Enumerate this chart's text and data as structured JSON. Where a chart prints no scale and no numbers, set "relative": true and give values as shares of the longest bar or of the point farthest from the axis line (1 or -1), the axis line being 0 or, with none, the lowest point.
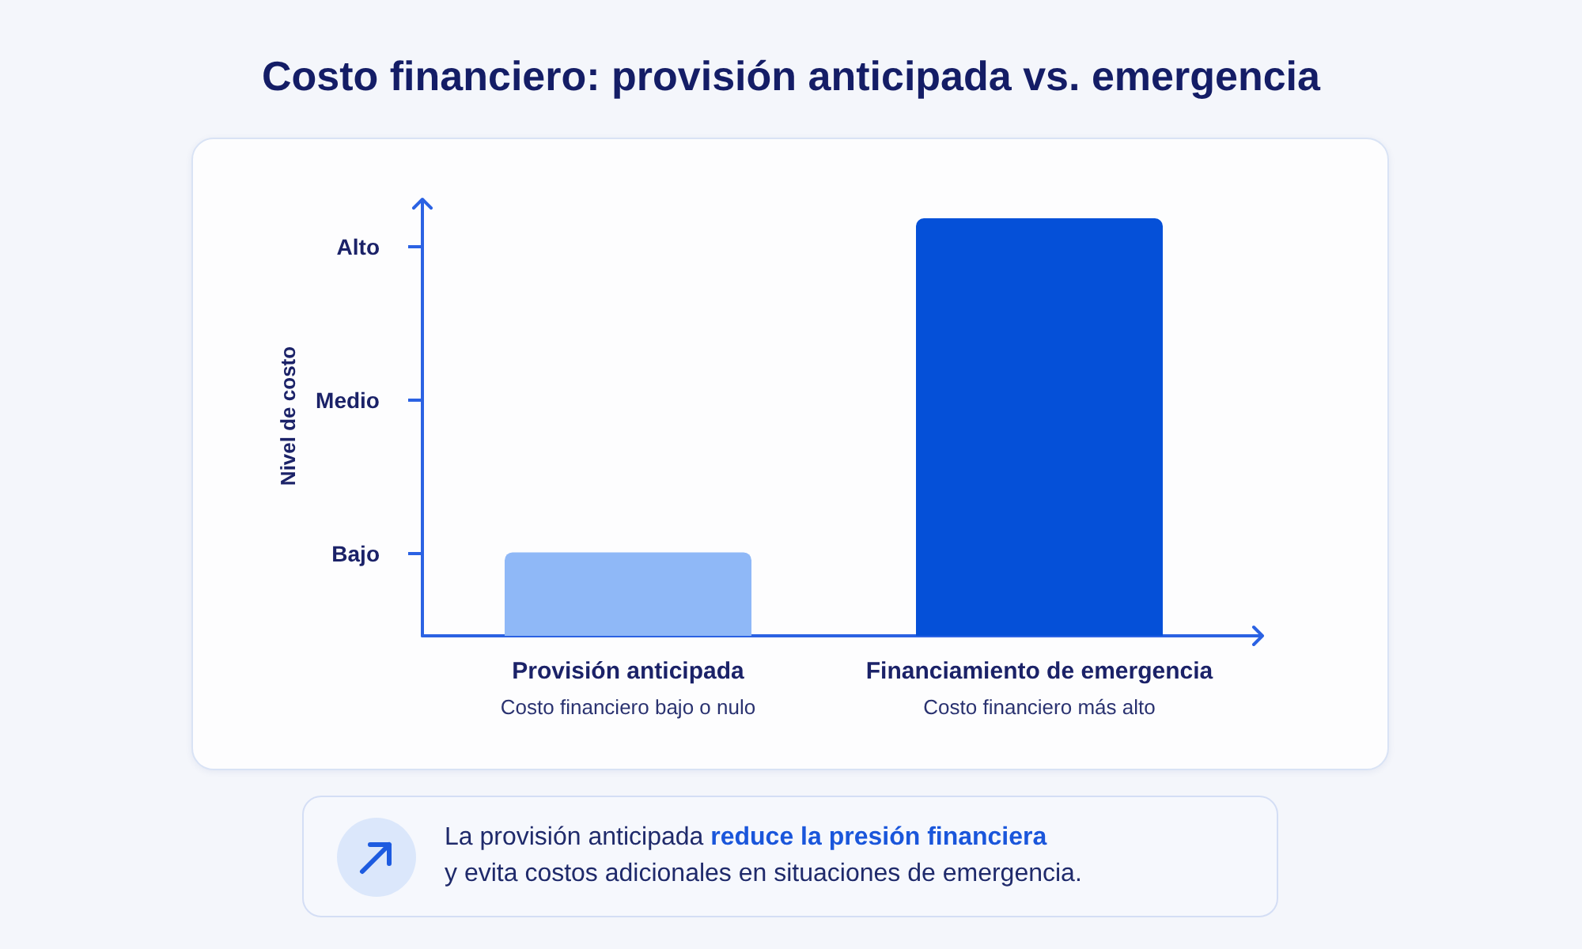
{
  "chart_data": {
    "type": "bar",
    "title": "Costo financiero: provisión anticipada vs. emergencia",
    "categories": [
      "Provisión anticipada",
      "Financiamiento de emergencia"
    ],
    "values": [
      0.2,
      1
    ],
    "colors": [
      "#8fb8f7",
      "#0550d8"
    ],
    "relative": true,
    "annotations": [
      "Nivel de costo",
      "Bajo",
      "Medio",
      "Alto",
      "Costo financiero bajo o nulo",
      "Costo financiero más alto",
      "La provisión anticipada",
      "reduce la presión financiera",
      "y evita costos adicionales en situaciones de emergencia."
    ]
  }
}
